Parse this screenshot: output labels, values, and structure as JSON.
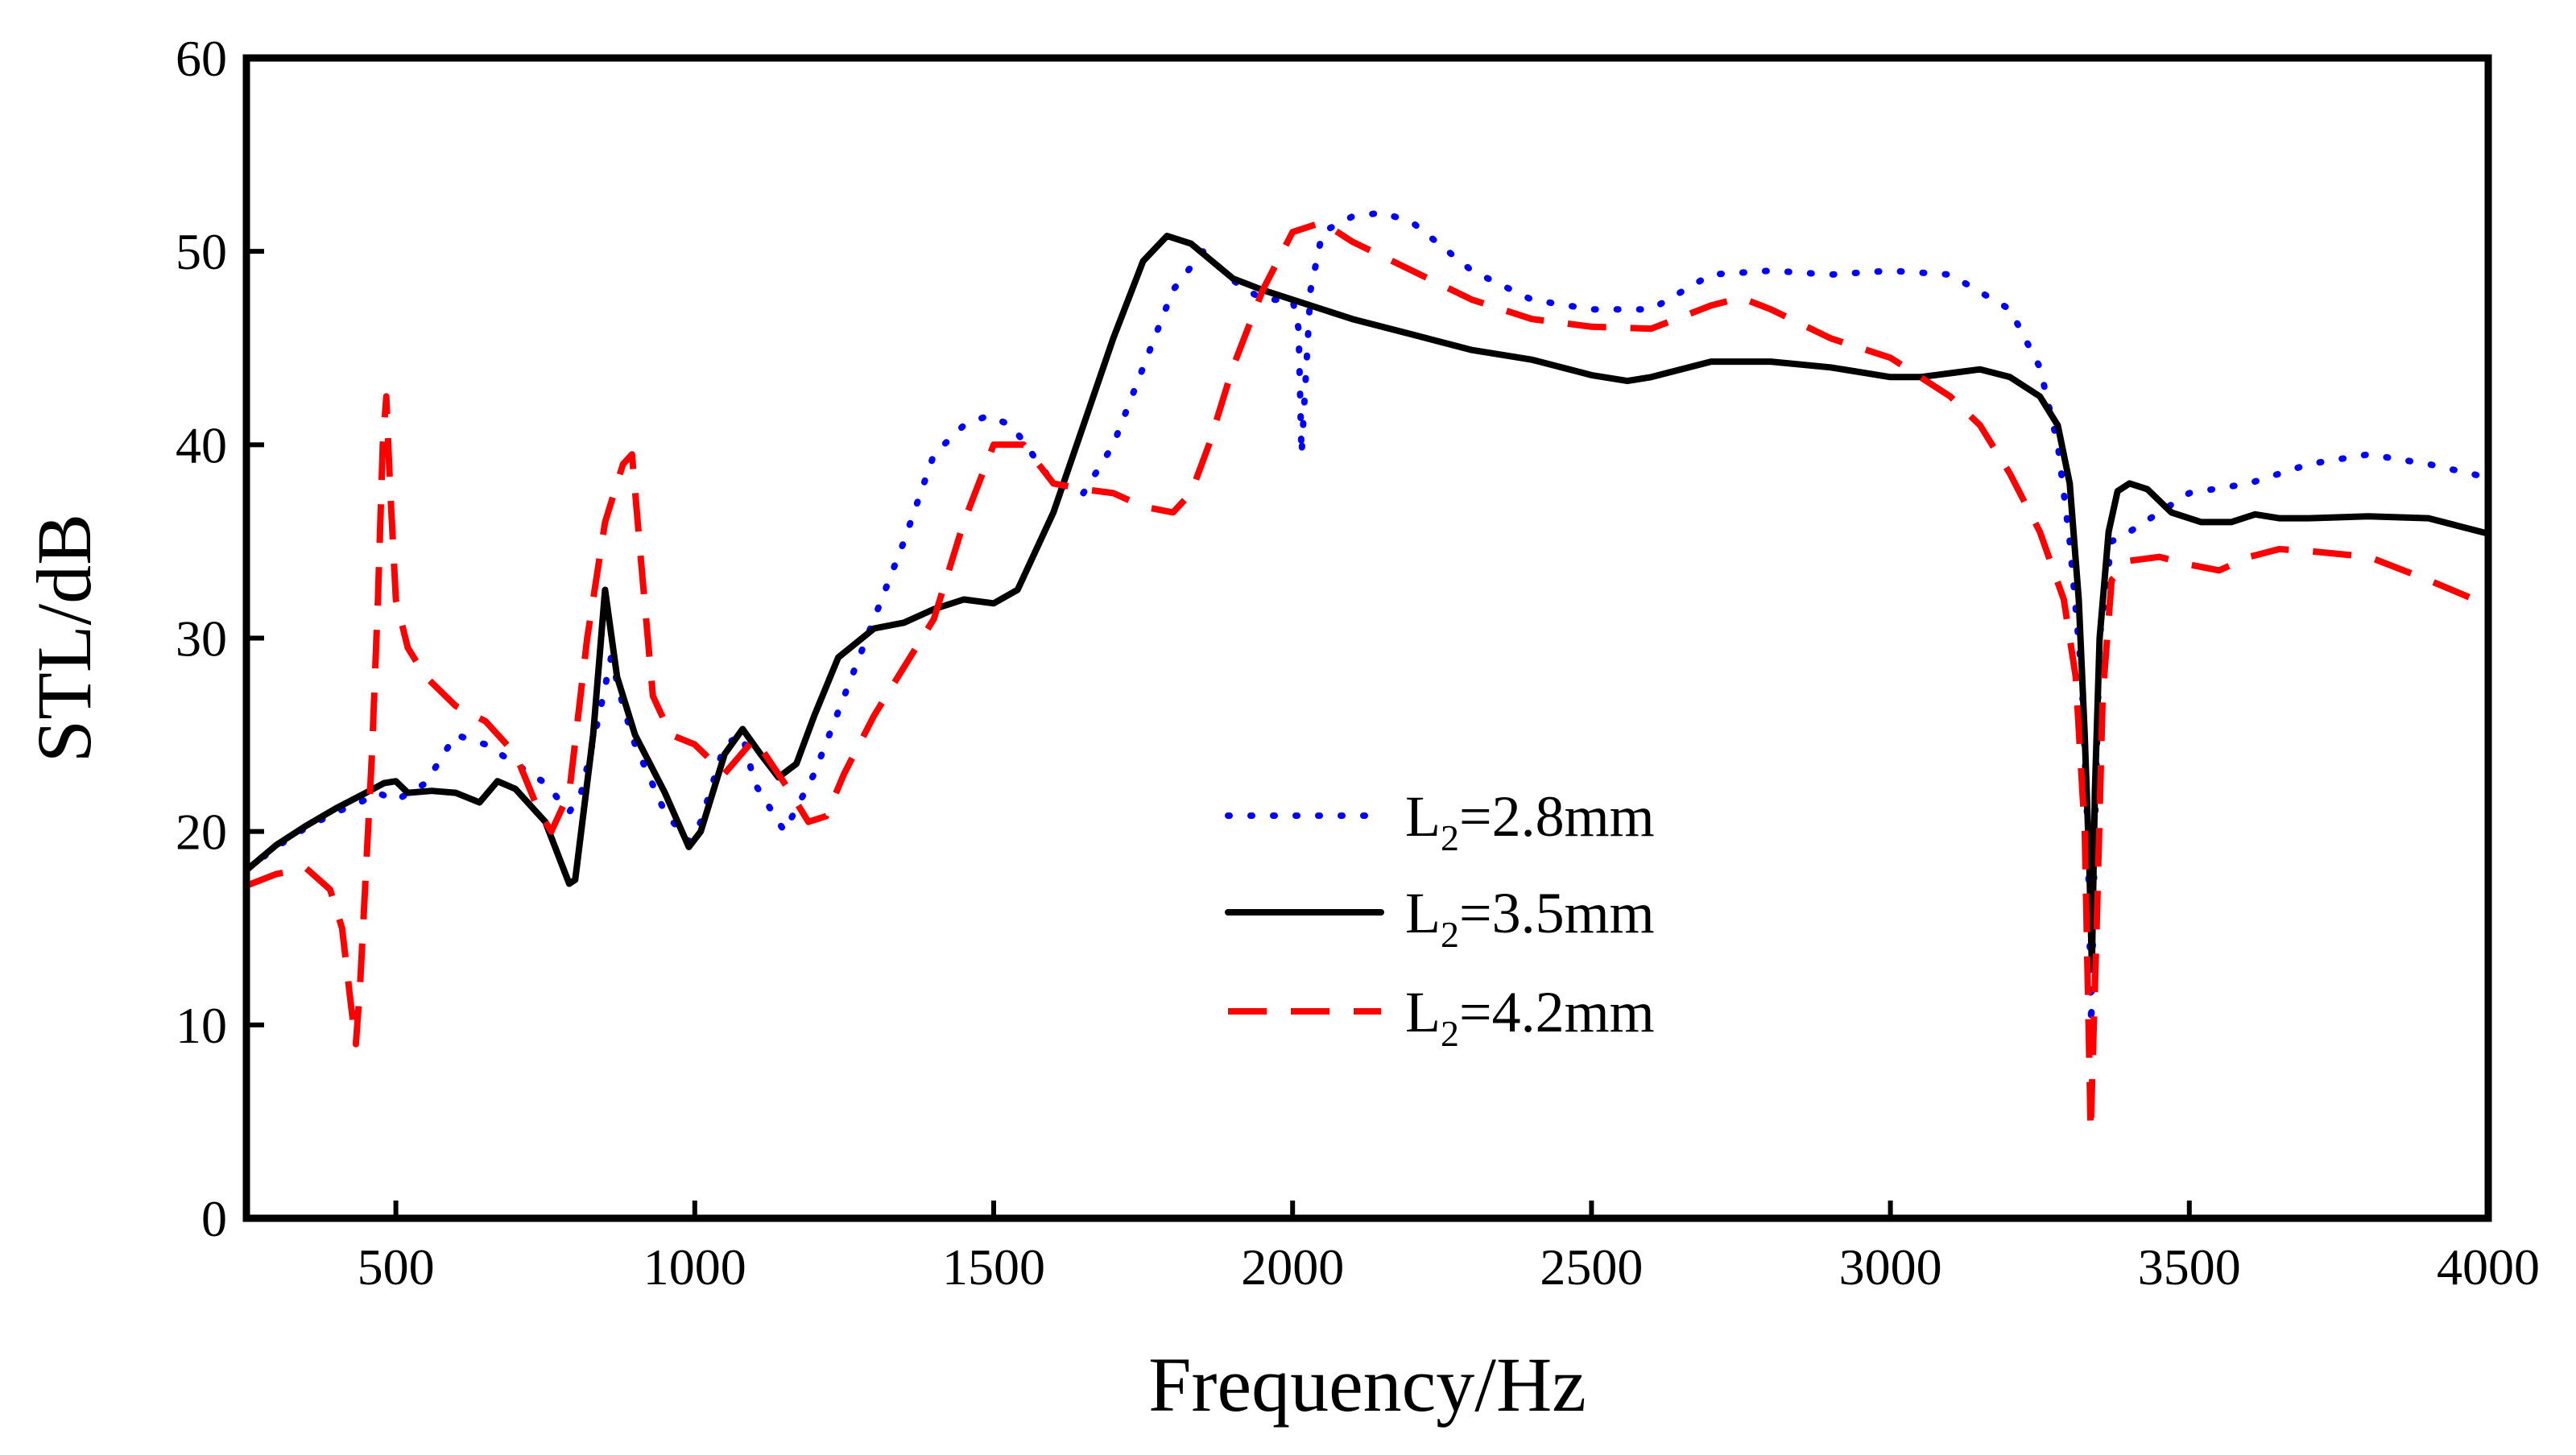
{
  "chart_data": {
    "type": "line",
    "xlabel": "Frequency/Hz",
    "ylabel": "STL/dB",
    "xlim": [
      250,
      4000
    ],
    "ylim": [
      0,
      60
    ],
    "x_ticks": [
      500,
      1000,
      1500,
      2000,
      2500,
      3000,
      3500,
      4000
    ],
    "y_ticks": [
      0,
      10,
      20,
      30,
      40,
      50,
      60
    ],
    "grid": false,
    "legend_position": "center",
    "series": [
      {
        "name_main": "L",
        "name_sub": "2",
        "name_rest": "=2.8mm",
        "color": "#0000ff",
        "style": "dotted",
        "points": [
          [
            250,
            18
          ],
          [
            300,
            19.2
          ],
          [
            350,
            20.2
          ],
          [
            400,
            21
          ],
          [
            440,
            21.5
          ],
          [
            470,
            22
          ],
          [
            500,
            21.6
          ],
          [
            550,
            22.5
          ],
          [
            600,
            25
          ],
          [
            650,
            24.5
          ],
          [
            700,
            23.5
          ],
          [
            750,
            22.5
          ],
          [
            790,
            21
          ],
          [
            810,
            22
          ],
          [
            840,
            26
          ],
          [
            860,
            29
          ],
          [
            880,
            26.5
          ],
          [
            900,
            24.5
          ],
          [
            950,
            21
          ],
          [
            990,
            19.5
          ],
          [
            1010,
            20.5
          ],
          [
            1050,
            24.5
          ],
          [
            1080,
            25
          ],
          [
            1100,
            22.5
          ],
          [
            1150,
            20
          ],
          [
            1200,
            23
          ],
          [
            1250,
            27
          ],
          [
            1300,
            31
          ],
          [
            1350,
            35
          ],
          [
            1400,
            39.5
          ],
          [
            1450,
            41
          ],
          [
            1490,
            41.5
          ],
          [
            1530,
            41
          ],
          [
            1600,
            38
          ],
          [
            1650,
            37.5
          ],
          [
            1700,
            40
          ],
          [
            1750,
            44
          ],
          [
            1800,
            48
          ],
          [
            1850,
            50
          ],
          [
            1900,
            48.5
          ],
          [
            1950,
            47.5
          ],
          [
            2000,
            47.5
          ],
          [
            2010,
            46
          ],
          [
            2015,
            39.5
          ],
          [
            2030,
            48
          ],
          [
            2050,
            51
          ],
          [
            2100,
            51.8
          ],
          [
            2150,
            52
          ],
          [
            2200,
            51.5
          ],
          [
            2300,
            49
          ],
          [
            2400,
            47.5
          ],
          [
            2500,
            47
          ],
          [
            2600,
            47
          ],
          [
            2700,
            48.8
          ],
          [
            2800,
            49
          ],
          [
            2900,
            48.8
          ],
          [
            3000,
            49
          ],
          [
            3100,
            48.8
          ],
          [
            3200,
            47
          ],
          [
            3250,
            44
          ],
          [
            3280,
            40
          ],
          [
            3300,
            35
          ],
          [
            3320,
            28
          ],
          [
            3330,
            20
          ],
          [
            3336,
            10
          ],
          [
            3342,
            20
          ],
          [
            3350,
            30
          ],
          [
            3370,
            35
          ],
          [
            3400,
            35.5
          ],
          [
            3450,
            36.5
          ],
          [
            3500,
            37.5
          ],
          [
            3600,
            38
          ],
          [
            3700,
            39
          ],
          [
            3800,
            39.5
          ],
          [
            3900,
            39
          ],
          [
            4000,
            38.3
          ]
        ]
      },
      {
        "name_main": "L",
        "name_sub": "2",
        "name_rest": "=3.5mm",
        "color": "#000000",
        "style": "solid",
        "points": [
          [
            250,
            18
          ],
          [
            300,
            19.3
          ],
          [
            350,
            20.3
          ],
          [
            400,
            21.2
          ],
          [
            450,
            22
          ],
          [
            480,
            22.5
          ],
          [
            500,
            22.6
          ],
          [
            520,
            22
          ],
          [
            560,
            22.1
          ],
          [
            600,
            22
          ],
          [
            640,
            21.5
          ],
          [
            670,
            22.6
          ],
          [
            700,
            22.2
          ],
          [
            750,
            20.5
          ],
          [
            790,
            17.3
          ],
          [
            800,
            17.5
          ],
          [
            830,
            25
          ],
          [
            850,
            32.5
          ],
          [
            870,
            28
          ],
          [
            900,
            25
          ],
          [
            950,
            22
          ],
          [
            990,
            19.2
          ],
          [
            1010,
            20
          ],
          [
            1050,
            24
          ],
          [
            1080,
            25.3
          ],
          [
            1110,
            24
          ],
          [
            1140,
            22.8
          ],
          [
            1170,
            23.5
          ],
          [
            1200,
            26
          ],
          [
            1240,
            29
          ],
          [
            1300,
            30.5
          ],
          [
            1350,
            30.8
          ],
          [
            1400,
            31.5
          ],
          [
            1450,
            32
          ],
          [
            1500,
            31.8
          ],
          [
            1540,
            32.5
          ],
          [
            1600,
            36.5
          ],
          [
            1650,
            41
          ],
          [
            1700,
            45.5
          ],
          [
            1750,
            49.5
          ],
          [
            1790,
            50.8
          ],
          [
            1830,
            50.4
          ],
          [
            1900,
            48.6
          ],
          [
            1950,
            48
          ],
          [
            2000,
            47.5
          ],
          [
            2100,
            46.5
          ],
          [
            2200,
            45.7
          ],
          [
            2300,
            44.9
          ],
          [
            2400,
            44.4
          ],
          [
            2500,
            43.6
          ],
          [
            2560,
            43.3
          ],
          [
            2600,
            43.5
          ],
          [
            2700,
            44.3
          ],
          [
            2800,
            44.3
          ],
          [
            2900,
            44
          ],
          [
            3000,
            43.5
          ],
          [
            3050,
            43.5
          ],
          [
            3100,
            43.7
          ],
          [
            3150,
            43.9
          ],
          [
            3200,
            43.5
          ],
          [
            3250,
            42.5
          ],
          [
            3280,
            41
          ],
          [
            3300,
            38
          ],
          [
            3315,
            32
          ],
          [
            3325,
            25
          ],
          [
            3333,
            18
          ],
          [
            3337,
            13
          ],
          [
            3342,
            22
          ],
          [
            3350,
            30
          ],
          [
            3365,
            35.5
          ],
          [
            3380,
            37.6
          ],
          [
            3400,
            38
          ],
          [
            3430,
            37.7
          ],
          [
            3470,
            36.5
          ],
          [
            3520,
            36
          ],
          [
            3570,
            36
          ],
          [
            3610,
            36.4
          ],
          [
            3650,
            36.2
          ],
          [
            3700,
            36.2
          ],
          [
            3800,
            36.3
          ],
          [
            3900,
            36.2
          ],
          [
            3950,
            35.8
          ],
          [
            4000,
            35.4
          ]
        ]
      },
      {
        "name_main": "L",
        "name_sub": "2",
        "name_rest": "=4.2mm",
        "color": "#ff0000",
        "style": "dashed",
        "points": [
          [
            250,
            17.2
          ],
          [
            300,
            17.8
          ],
          [
            350,
            18.1
          ],
          [
            390,
            17
          ],
          [
            410,
            15
          ],
          [
            425,
            11
          ],
          [
            433,
            9
          ],
          [
            440,
            12
          ],
          [
            450,
            18
          ],
          [
            460,
            24
          ],
          [
            470,
            32
          ],
          [
            478,
            40
          ],
          [
            484,
            42.5
          ],
          [
            490,
            38
          ],
          [
            500,
            32
          ],
          [
            520,
            29.5
          ],
          [
            550,
            28
          ],
          [
            600,
            26.5
          ],
          [
            650,
            25.7
          ],
          [
            700,
            24
          ],
          [
            740,
            21
          ],
          [
            760,
            20
          ],
          [
            790,
            22
          ],
          [
            820,
            30
          ],
          [
            850,
            36
          ],
          [
            880,
            39
          ],
          [
            895,
            39.5
          ],
          [
            910,
            34
          ],
          [
            930,
            27
          ],
          [
            960,
            25
          ],
          [
            1000,
            24.5
          ],
          [
            1050,
            23
          ],
          [
            1100,
            24.8
          ],
          [
            1150,
            22.5
          ],
          [
            1190,
            20.5
          ],
          [
            1220,
            20.8
          ],
          [
            1250,
            23
          ],
          [
            1300,
            26
          ],
          [
            1350,
            28.5
          ],
          [
            1400,
            31
          ],
          [
            1450,
            36
          ],
          [
            1500,
            40
          ],
          [
            1550,
            40
          ],
          [
            1600,
            38
          ],
          [
            1650,
            37.7
          ],
          [
            1700,
            37.5
          ],
          [
            1750,
            36.8
          ],
          [
            1800,
            36.5
          ],
          [
            1830,
            37.5
          ],
          [
            1860,
            40
          ],
          [
            1900,
            44
          ],
          [
            1950,
            48
          ],
          [
            2000,
            51
          ],
          [
            2050,
            51.5
          ],
          [
            2100,
            50.5
          ],
          [
            2200,
            49
          ],
          [
            2300,
            47.5
          ],
          [
            2400,
            46.5
          ],
          [
            2500,
            46.1
          ],
          [
            2600,
            46
          ],
          [
            2700,
            47.2
          ],
          [
            2750,
            47.6
          ],
          [
            2800,
            47
          ],
          [
            2900,
            45.5
          ],
          [
            3000,
            44.5
          ],
          [
            3100,
            42.5
          ],
          [
            3150,
            41
          ],
          [
            3200,
            38.5
          ],
          [
            3250,
            35.5
          ],
          [
            3290,
            32
          ],
          [
            3310,
            28
          ],
          [
            3325,
            20
          ],
          [
            3335,
            4.5
          ],
          [
            3345,
            15
          ],
          [
            3355,
            27
          ],
          [
            3370,
            33
          ],
          [
            3400,
            34
          ],
          [
            3450,
            34.2
          ],
          [
            3500,
            33.8
          ],
          [
            3550,
            33.5
          ],
          [
            3600,
            34.2
          ],
          [
            3650,
            34.6
          ],
          [
            3700,
            34.5
          ],
          [
            3800,
            34.2
          ],
          [
            3900,
            33
          ],
          [
            4000,
            31.7
          ]
        ]
      }
    ]
  }
}
